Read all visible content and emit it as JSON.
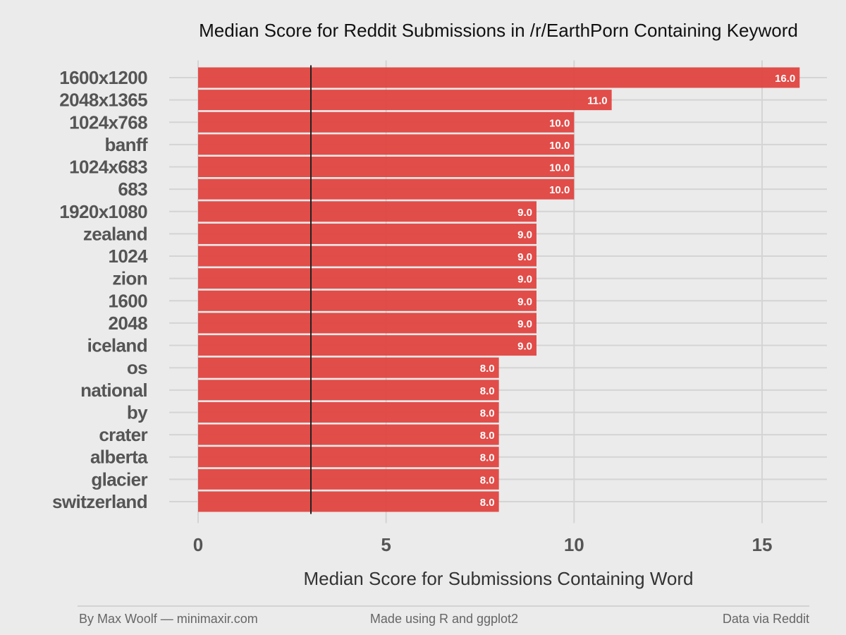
{
  "chart_data": {
    "type": "bar",
    "orientation": "horizontal",
    "title": "Median Score for Reddit Submissions in /r/EarthPorn Containing Keyword",
    "xlabel": "Median Score for Submissions Containing Word",
    "ylabel": "",
    "categories": [
      "1600x1200",
      "2048x1365",
      "1024x768",
      "banff",
      "1024x683",
      "683",
      "1920x1080",
      "zealand",
      "1024",
      "zion",
      "1600",
      "2048",
      "iceland",
      "os",
      "national",
      "by",
      "crater",
      "alberta",
      "glacier",
      "switzerland"
    ],
    "values": [
      16.0,
      11.0,
      10.0,
      10.0,
      10.0,
      10.0,
      9.0,
      9.0,
      9.0,
      9.0,
      9.0,
      9.0,
      9.0,
      8.0,
      8.0,
      8.0,
      8.0,
      8.0,
      8.0,
      8.0
    ],
    "data_labels": [
      "16.0",
      "11.0",
      "10.0",
      "10.0",
      "10.0",
      "10.0",
      "9.0",
      "9.0",
      "9.0",
      "9.0",
      "9.0",
      "9.0",
      "9.0",
      "8.0",
      "8.0",
      "8.0",
      "8.0",
      "8.0",
      "8.0",
      "8.0"
    ],
    "xlim": [
      0,
      16.8
    ],
    "xticks": [
      0,
      5,
      10,
      15
    ],
    "xtick_labels": [
      "0",
      "5",
      "10",
      "15"
    ],
    "reference_line": 3,
    "bar_color": "#e04440",
    "reference_line_color": "#222222",
    "grid": true,
    "legend": "none"
  },
  "footer": {
    "left": "By Max Woolf — minimaxir.com",
    "center": "Made using R and ggplot2",
    "right": "Data via Reddit"
  },
  "colors": {
    "background": "#ebebeb",
    "gridline": "#d4d4d4",
    "footer_rule": "#bbbbbb"
  }
}
